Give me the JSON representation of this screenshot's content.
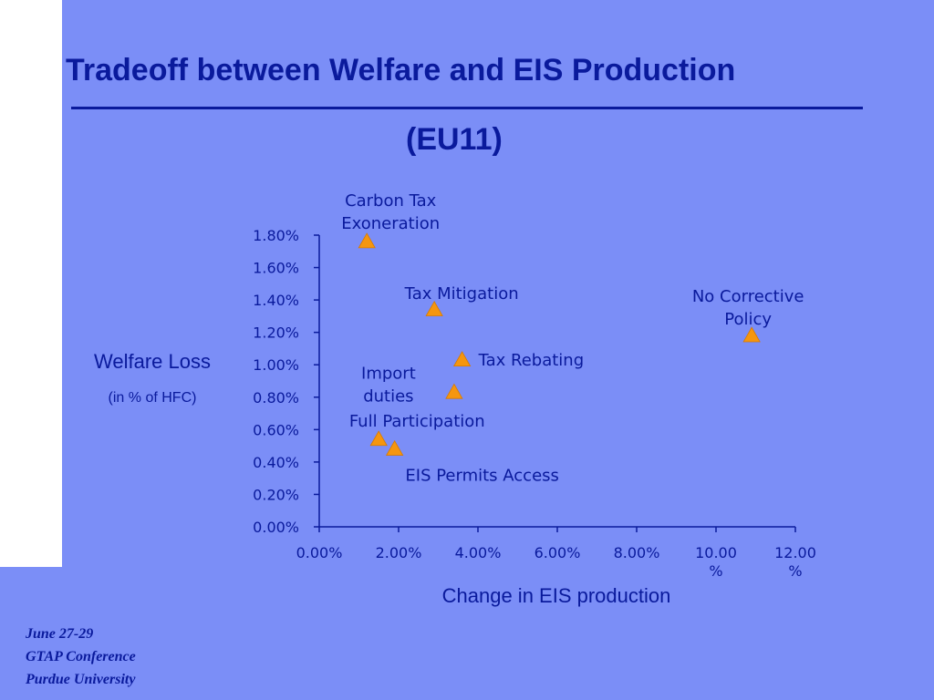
{
  "slide": {
    "title": "Tradeoff between  Welfare and EIS Production",
    "subtitle": "(EU11)",
    "ylabel": "Welfare Loss",
    "ylabel_sub": "(in % of HFC)",
    "xlabel": "Change in EIS production",
    "footer": [
      "June 27-29",
      "GTAP Conference",
      "Purdue University"
    ],
    "colors": {
      "background": "#7b8ef7",
      "text": "#0a1a9c",
      "marker": "#f5960f"
    }
  },
  "chart_data": {
    "type": "scatter",
    "xlim": [
      0,
      12
    ],
    "ylim": [
      0,
      1.8
    ],
    "x_ticks": [
      "0.00%",
      "2.00%",
      "4.00%",
      "6.00%",
      "8.00%",
      [
        "10.00",
        "%"
      ],
      [
        "12.00",
        "%"
      ]
    ],
    "y_ticks": [
      "0.00%",
      "0.20%",
      "0.40%",
      "0.60%",
      "0.80%",
      "1.00%",
      "1.20%",
      "1.40%",
      "1.60%",
      "1.80%"
    ],
    "points": [
      {
        "label": [
          "Carbon Tax",
          "Exoneration"
        ],
        "x": 1.2,
        "y": 1.76
      },
      {
        "label": [
          "Tax Mitigation"
        ],
        "x": 2.9,
        "y": 1.34
      },
      {
        "label": [
          "No Corrective",
          "Policy"
        ],
        "x": 10.9,
        "y": 1.18
      },
      {
        "label": [
          "Tax Rebating"
        ],
        "x": 3.6,
        "y": 1.03
      },
      {
        "label": [
          "Import",
          "duties"
        ],
        "x": 3.4,
        "y": 0.83
      },
      {
        "label": [
          "Full Participation"
        ],
        "x": 1.5,
        "y": 0.54
      },
      {
        "label": [
          "EIS Permits Access"
        ],
        "x": 1.9,
        "y": 0.48
      }
    ]
  }
}
